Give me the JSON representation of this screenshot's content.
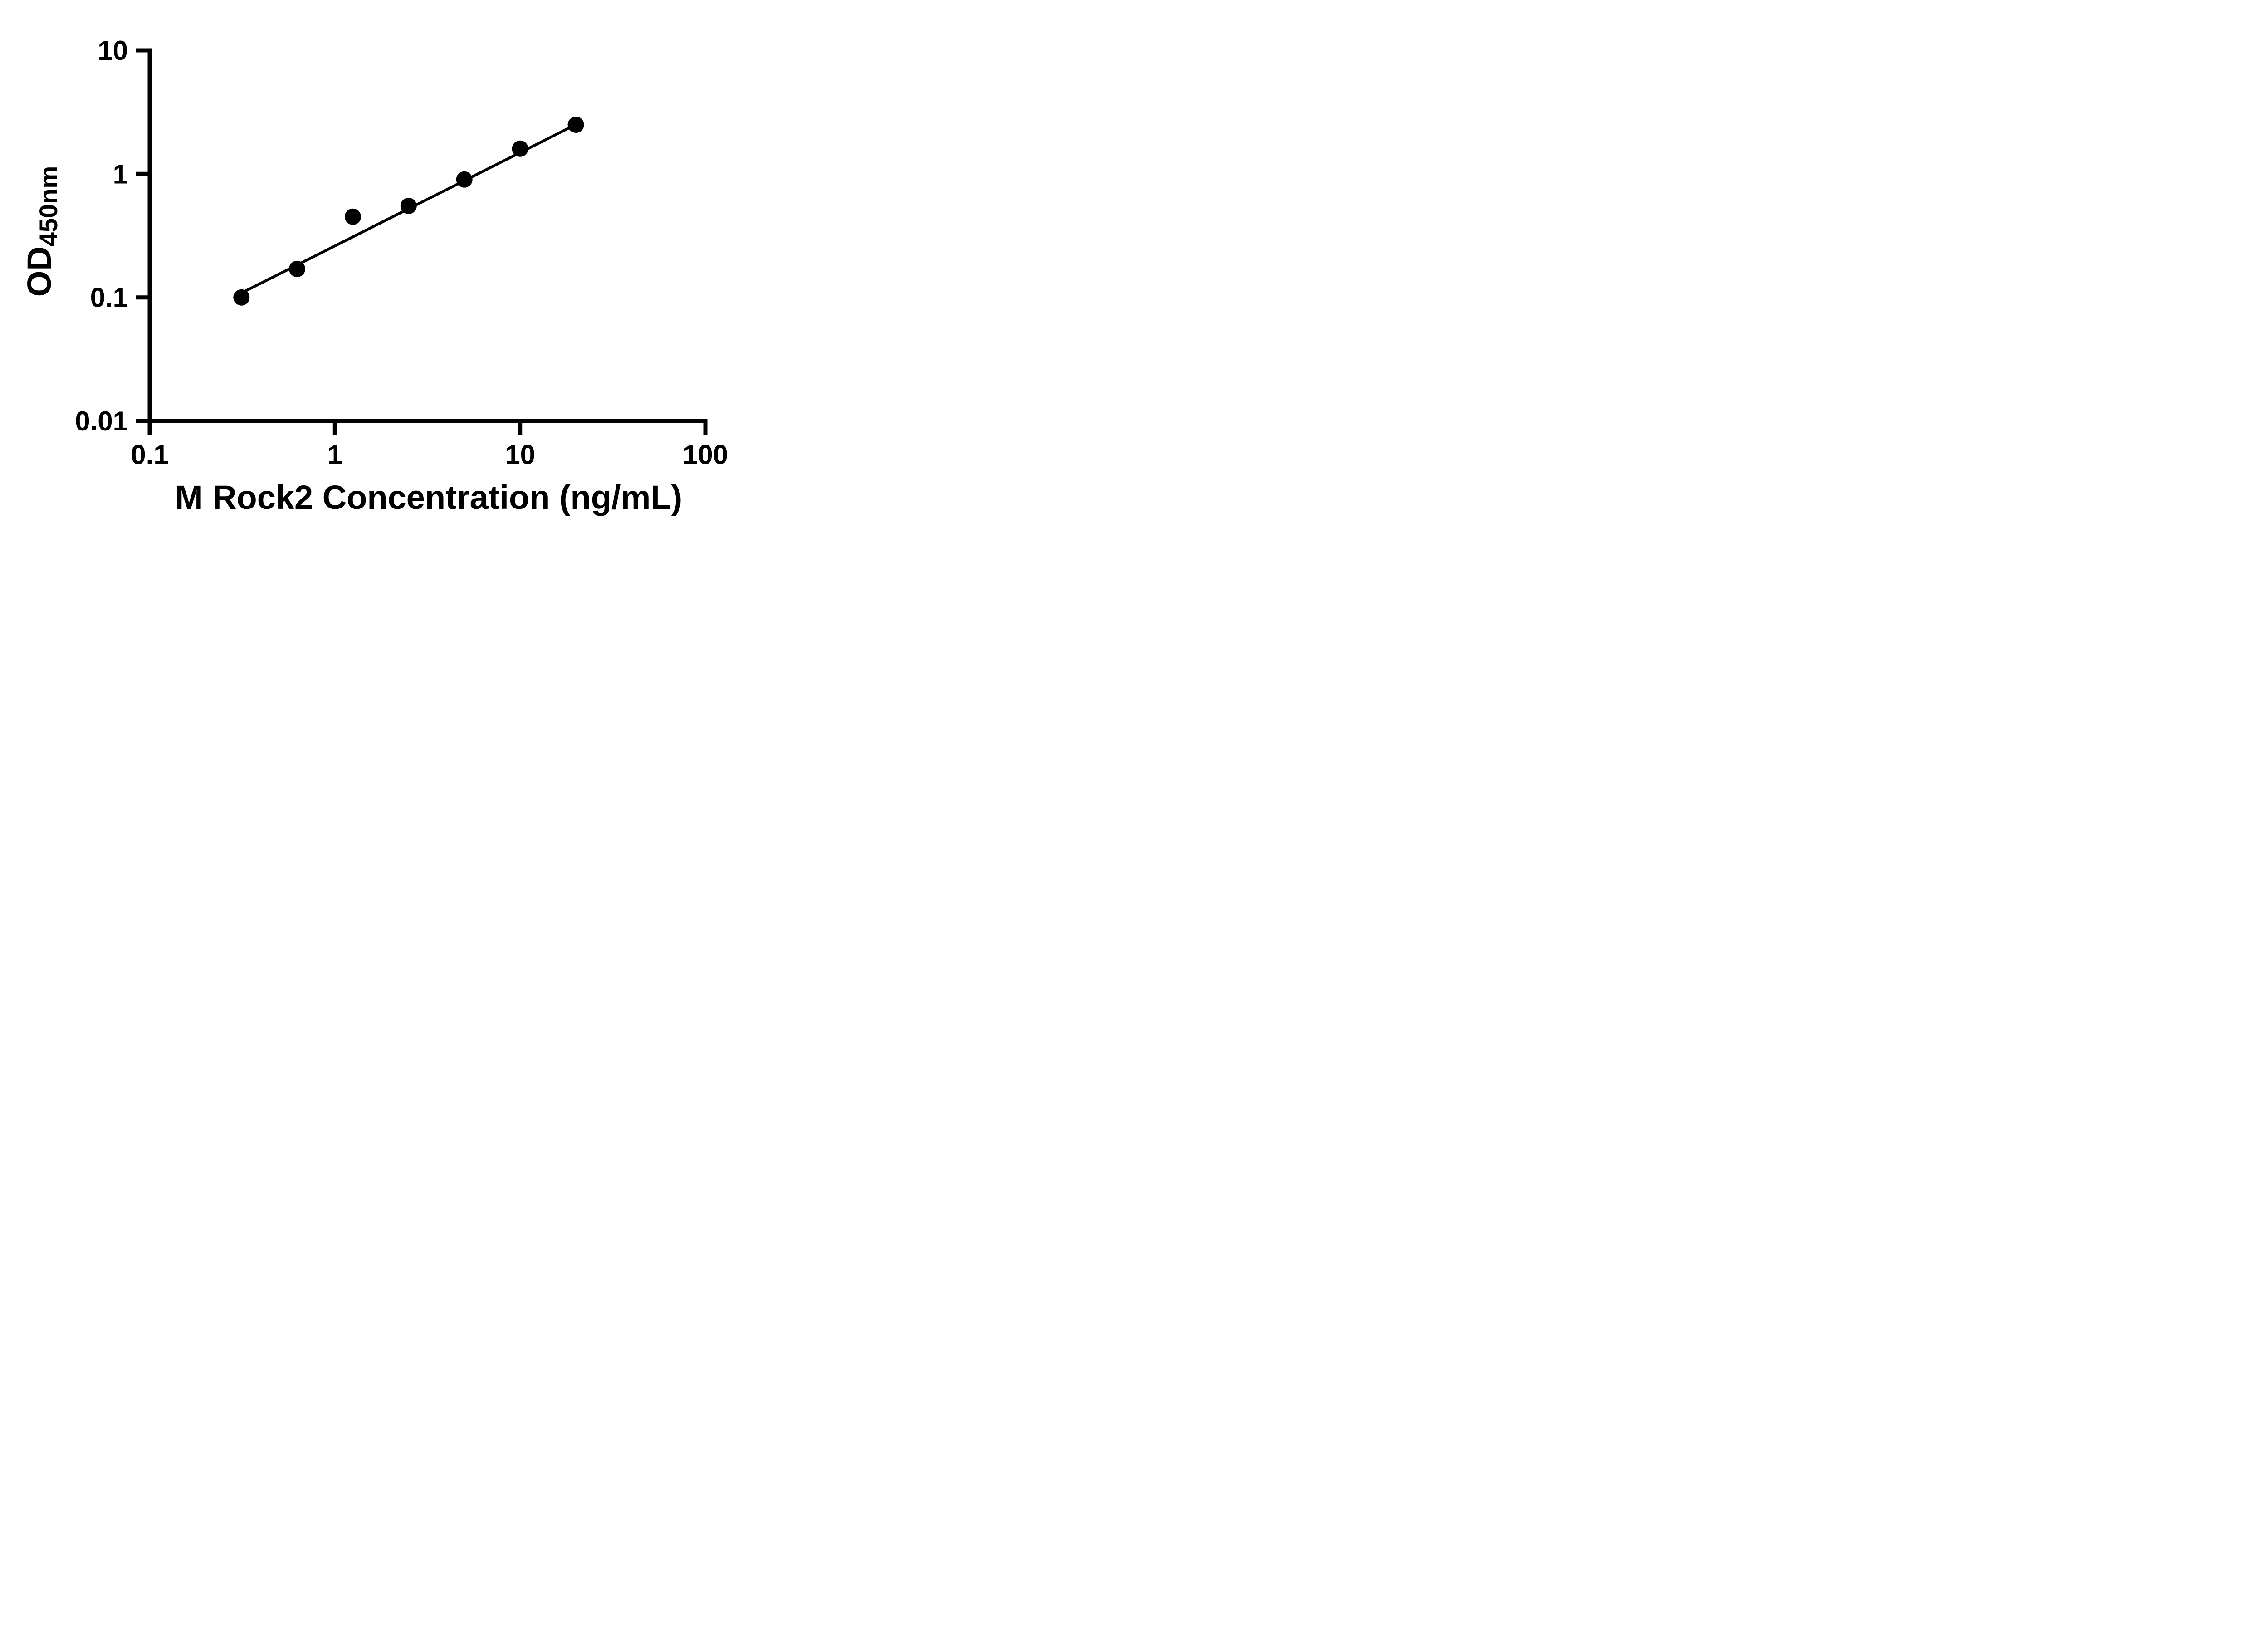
{
  "chart_data": {
    "type": "scatter",
    "title": "",
    "xlabel": "M Rock2 Concentration (ng/mL)",
    "ylabel": "OD",
    "ylabel_subscript": "450nm",
    "x_scale": "log",
    "y_scale": "log",
    "xlim": [
      0.1,
      100
    ],
    "ylim": [
      0.01,
      10
    ],
    "grid": false,
    "legend": false,
    "axis_color": "#000000",
    "background": "#ffffff",
    "x_ticks": [
      {
        "value": 0.1,
        "label": "0.1"
      },
      {
        "value": 1,
        "label": "1"
      },
      {
        "value": 10,
        "label": "10"
      },
      {
        "value": 100,
        "label": "100"
      }
    ],
    "y_ticks": [
      {
        "value": 10,
        "label": "10"
      },
      {
        "value": 1,
        "label": "1"
      },
      {
        "value": 0.1,
        "label": "0.1"
      },
      {
        "value": 0.01,
        "label": "0.01"
      }
    ],
    "series": [
      {
        "marker": "circle",
        "marker_radius": 18,
        "color": "#000000",
        "points": [
          {
            "x": 0.313,
            "y": 0.1
          },
          {
            "x": 0.625,
            "y": 0.17
          },
          {
            "x": 1.25,
            "y": 0.45
          },
          {
            "x": 2.5,
            "y": 0.55
          },
          {
            "x": 5,
            "y": 0.9
          },
          {
            "x": 10,
            "y": 1.6
          },
          {
            "x": 20,
            "y": 2.5
          }
        ]
      }
    ],
    "fit_line": {
      "color": "#000000",
      "points": [
        {
          "x": 0.33,
          "y": 0.113
        },
        {
          "x": 0.625,
          "y": 0.183
        },
        {
          "x": 1.25,
          "y": 0.309
        },
        {
          "x": 2.5,
          "y": 0.522
        },
        {
          "x": 5,
          "y": 0.881
        },
        {
          "x": 10,
          "y": 1.487
        },
        {
          "x": 20,
          "y": 2.51
        }
      ]
    }
  }
}
